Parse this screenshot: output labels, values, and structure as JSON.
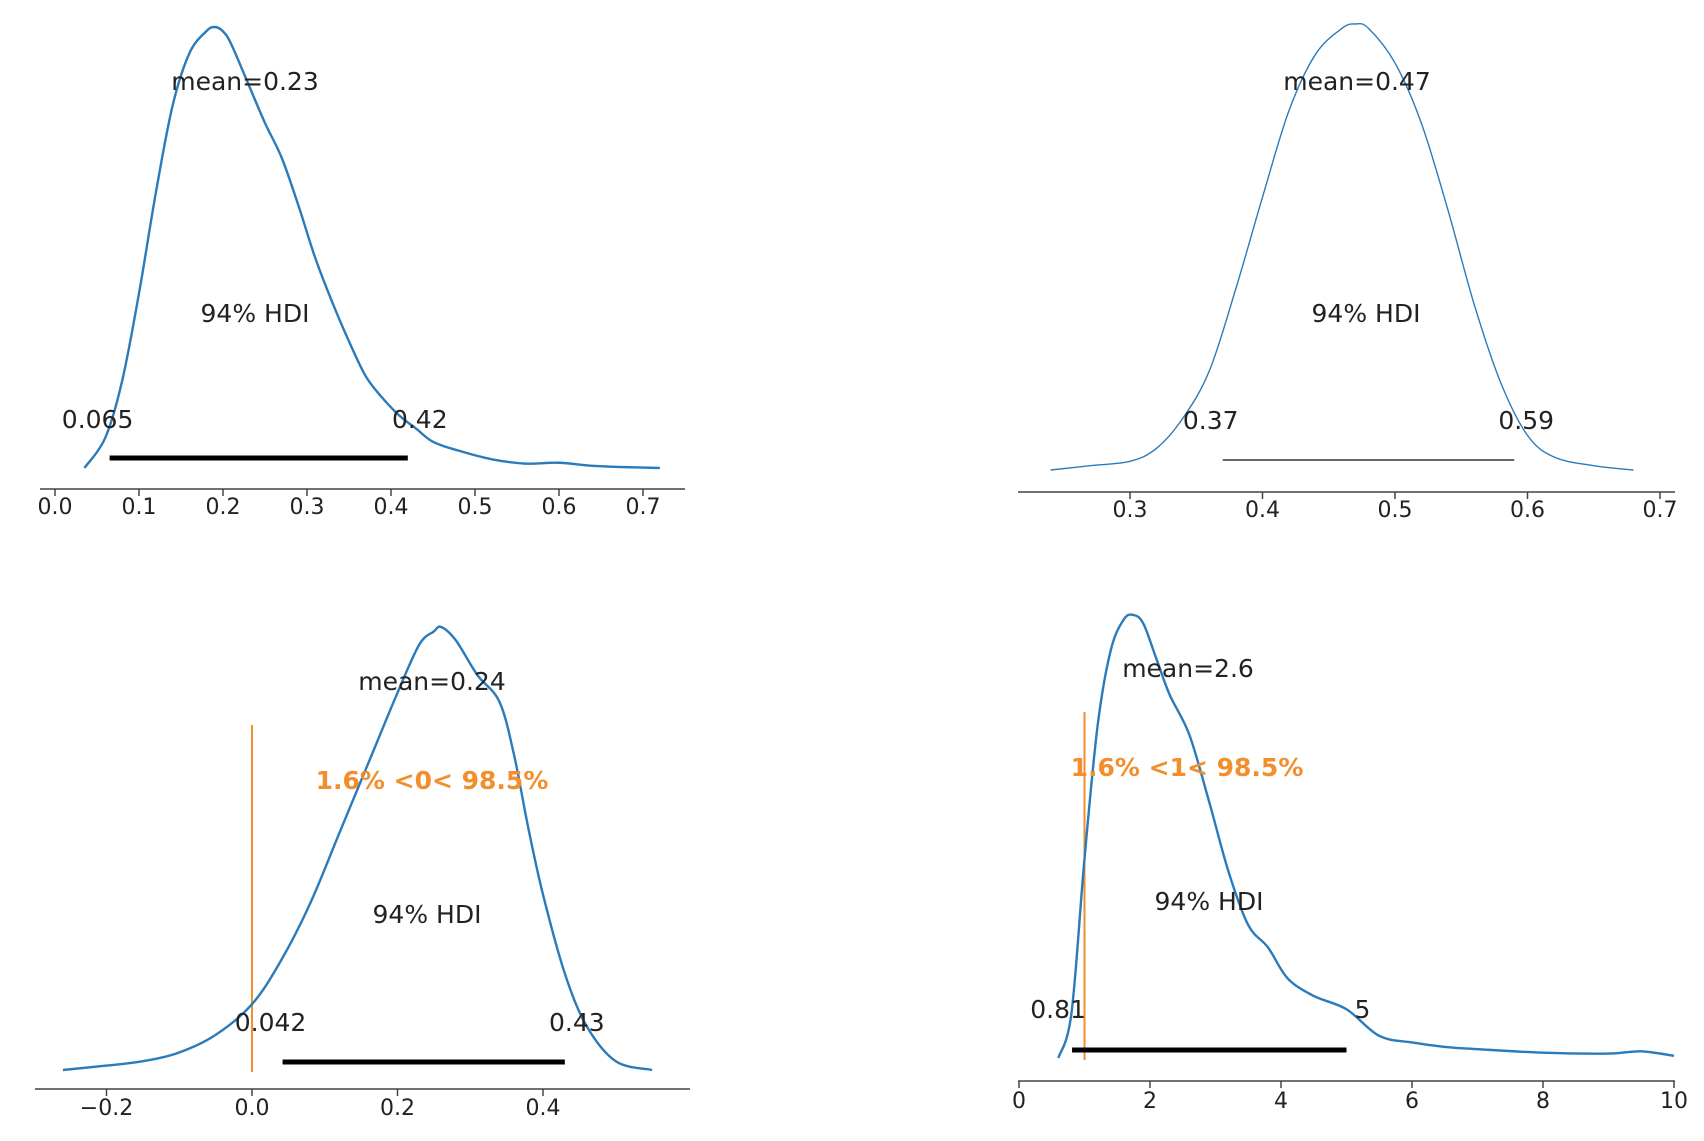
{
  "colors": {
    "density": "#2b7bba",
    "hdi": "#000000",
    "ref": "#f28e2b",
    "axis": "#444444"
  },
  "chart_data": [
    {
      "type": "line",
      "title": "",
      "xlabel": "",
      "ylabel": "",
      "xlim": [
        -0.02,
        0.75
      ],
      "xticks": [
        0.0,
        0.1,
        0.2,
        0.3,
        0.4,
        0.5,
        0.6,
        0.7
      ],
      "xtick_labels": [
        "0.0",
        "0.1",
        "0.2",
        "0.3",
        "0.4",
        "0.5",
        "0.6",
        "0.7"
      ],
      "series": [
        {
          "name": "posterior",
          "x": [
            0.035,
            0.06,
            0.08,
            0.1,
            0.12,
            0.14,
            0.16,
            0.18,
            0.19,
            0.2,
            0.21,
            0.23,
            0.25,
            0.27,
            0.29,
            0.31,
            0.33,
            0.35,
            0.37,
            0.39,
            0.41,
            0.43,
            0.45,
            0.48,
            0.52,
            0.56,
            0.6,
            0.64,
            0.68,
            0.72
          ],
          "y": [
            0.0,
            0.07,
            0.2,
            0.4,
            0.63,
            0.83,
            0.95,
            1.0,
            1.01,
            1.0,
            0.97,
            0.88,
            0.79,
            0.71,
            0.6,
            0.48,
            0.38,
            0.29,
            0.21,
            0.16,
            0.12,
            0.09,
            0.06,
            0.04,
            0.02,
            0.01,
            0.012,
            0.005,
            0.002,
            0.0
          ]
        }
      ],
      "mean_label": "mean=0.23",
      "hdi": {
        "label": "94% HDI",
        "low": 0.065,
        "high": 0.42,
        "low_label": "0.065",
        "high_label": "0.42"
      },
      "reference": null
    },
    {
      "type": "line",
      "title": "",
      "xlabel": "",
      "ylabel": "",
      "xlim": [
        0.23,
        0.7
      ],
      "xticks": [
        0.3,
        0.4,
        0.5,
        0.6,
        0.7
      ],
      "xtick_labels": [
        "0.3",
        "0.4",
        "0.5",
        "0.6",
        "0.7"
      ],
      "series": [
        {
          "name": "posterior",
          "x": [
            0.24,
            0.27,
            0.3,
            0.32,
            0.34,
            0.36,
            0.38,
            0.4,
            0.42,
            0.44,
            0.46,
            0.47,
            0.48,
            0.5,
            0.52,
            0.54,
            0.56,
            0.58,
            0.6,
            0.62,
            0.65,
            0.68
          ],
          "y": [
            0.0,
            0.01,
            0.02,
            0.05,
            0.12,
            0.23,
            0.42,
            0.63,
            0.83,
            0.96,
            1.02,
            1.03,
            1.02,
            0.94,
            0.8,
            0.6,
            0.38,
            0.2,
            0.08,
            0.03,
            0.01,
            0.0
          ]
        }
      ],
      "mean_label": "mean=0.47",
      "hdi": {
        "label": "94% HDI",
        "low": 0.37,
        "high": 0.59,
        "low_label": "0.37",
        "high_label": "0.59"
      },
      "reference": null
    },
    {
      "type": "line",
      "title": "",
      "xlabel": "",
      "ylabel": "",
      "xlim": [
        -0.3,
        0.6
      ],
      "xticks": [
        -0.2,
        0.0,
        0.2,
        0.4
      ],
      "xtick_labels": [
        "−0.2",
        "0.0",
        "0.2",
        "0.4"
      ],
      "series": [
        {
          "name": "posterior",
          "x": [
            -0.26,
            -0.2,
            -0.15,
            -0.1,
            -0.05,
            0.0,
            0.04,
            0.08,
            0.12,
            0.16,
            0.2,
            0.23,
            0.25,
            0.26,
            0.28,
            0.31,
            0.34,
            0.36,
            0.38,
            0.4,
            0.43,
            0.46,
            0.5,
            0.55
          ],
          "y": [
            0.0,
            0.01,
            0.02,
            0.04,
            0.08,
            0.15,
            0.25,
            0.38,
            0.54,
            0.7,
            0.86,
            0.97,
            1.0,
            1.01,
            0.98,
            0.9,
            0.84,
            0.72,
            0.55,
            0.4,
            0.22,
            0.1,
            0.02,
            0.0
          ]
        }
      ],
      "mean_label": "mean=0.24",
      "hdi": {
        "label": "94% HDI",
        "low": 0.042,
        "high": 0.43,
        "low_label": "0.042",
        "high_label": "0.43"
      },
      "reference": {
        "value": 0,
        "label": "1.6% <0< 98.5%"
      }
    },
    {
      "type": "line",
      "title": "",
      "xlabel": "",
      "ylabel": "",
      "xlim": [
        0,
        10
      ],
      "xticks": [
        0,
        2,
        4,
        6,
        8,
        10
      ],
      "xtick_labels": [
        "0",
        "2",
        "4",
        "6",
        "8",
        "10"
      ],
      "series": [
        {
          "name": "posterior",
          "x": [
            0.6,
            0.8,
            1.0,
            1.2,
            1.4,
            1.6,
            1.75,
            1.9,
            2.1,
            2.3,
            2.6,
            2.9,
            3.2,
            3.5,
            3.8,
            4.1,
            4.5,
            5.0,
            5.5,
            6.0,
            6.5,
            7.0,
            8.0,
            9.0,
            9.5,
            10.0
          ],
          "y": [
            0.0,
            0.1,
            0.45,
            0.75,
            0.92,
            0.99,
            1.0,
            0.98,
            0.9,
            0.82,
            0.73,
            0.58,
            0.42,
            0.3,
            0.25,
            0.18,
            0.14,
            0.11,
            0.05,
            0.035,
            0.025,
            0.02,
            0.012,
            0.01,
            0.015,
            0.005
          ]
        }
      ],
      "mean_label": "mean=2.6",
      "hdi": {
        "label": "94% HDI",
        "low": 0.81,
        "high": 5.0,
        "low_label": "0.81",
        "high_label": "5"
      },
      "reference": {
        "value": 1,
        "label": "1.6% <1< 98.5%"
      }
    }
  ]
}
